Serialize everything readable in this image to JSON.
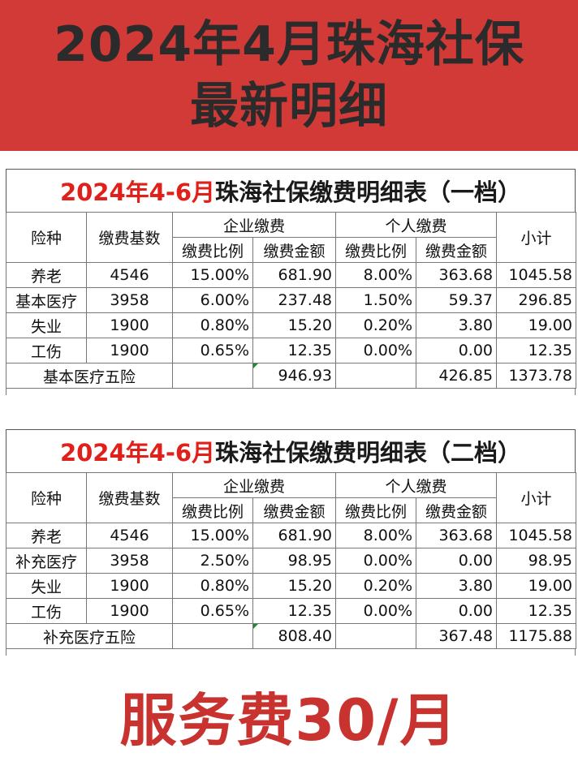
{
  "banner": {
    "line1": "2024年4月珠海社保",
    "line2": "最新明细"
  },
  "tables": [
    {
      "title_red": "2024年4-6月",
      "title_dark": "珠海社保缴费明细表（一档）",
      "headers": {
        "type": "险种",
        "base": "缴费基数",
        "company": "企业缴费",
        "personal": "个人缴费",
        "subtotal": "小计",
        "rate": "缴费比例",
        "amount": "缴费金额"
      },
      "rows": [
        {
          "type": "养老",
          "base": "4546",
          "c_rate": "15.00%",
          "c_amt": "681.90",
          "p_rate": "8.00%",
          "p_amt": "363.68",
          "subtotal": "1045.58"
        },
        {
          "type": "基本医疗",
          "base": "3958",
          "c_rate": "6.00%",
          "c_amt": "237.48",
          "p_rate": "1.50%",
          "p_amt": "59.37",
          "subtotal": "296.85"
        },
        {
          "type": "失业",
          "base": "1900",
          "c_rate": "0.80%",
          "c_amt": "15.20",
          "p_rate": "0.20%",
          "p_amt": "3.80",
          "subtotal": "19.00"
        },
        {
          "type": "工伤",
          "base": "1900",
          "c_rate": "0.65%",
          "c_amt": "12.35",
          "p_rate": "0.00%",
          "p_amt": "0.00",
          "subtotal": "12.35"
        }
      ],
      "total": {
        "label": "基本医疗五险",
        "c_amt": "946.93",
        "p_amt": "426.85",
        "subtotal": "1373.78"
      }
    },
    {
      "title_red": "2024年4-6月",
      "title_dark": "珠海社保缴费明细表（二档）",
      "headers": {
        "type": "险种",
        "base": "缴费基数",
        "company": "企业缴费",
        "personal": "个人缴费",
        "subtotal": "小计",
        "rate": "缴费比例",
        "amount": "缴费金额"
      },
      "rows": [
        {
          "type": "养老",
          "base": "4546",
          "c_rate": "15.00%",
          "c_amt": "681.90",
          "p_rate": "8.00%",
          "p_amt": "363.68",
          "subtotal": "1045.58"
        },
        {
          "type": "补充医疗",
          "base": "3958",
          "c_rate": "2.50%",
          "c_amt": "98.95",
          "p_rate": "0.00%",
          "p_amt": "0.00",
          "subtotal": "98.95"
        },
        {
          "type": "失业",
          "base": "1900",
          "c_rate": "0.80%",
          "c_amt": "15.20",
          "p_rate": "0.20%",
          "p_amt": "3.80",
          "subtotal": "19.00"
        },
        {
          "type": "工伤",
          "base": "1900",
          "c_rate": "0.65%",
          "c_amt": "12.35",
          "p_rate": "0.00%",
          "p_amt": "0.00",
          "subtotal": "12.35"
        }
      ],
      "total": {
        "label": "补充医疗五险",
        "c_amt": "808.40",
        "p_amt": "367.48",
        "subtotal": "1175.88"
      }
    }
  ],
  "footer": {
    "text": "服务费30/月"
  },
  "colors": {
    "banner_bg": "#d23a38",
    "title_red": "#e0201b",
    "footer_red": "#c8322f"
  }
}
